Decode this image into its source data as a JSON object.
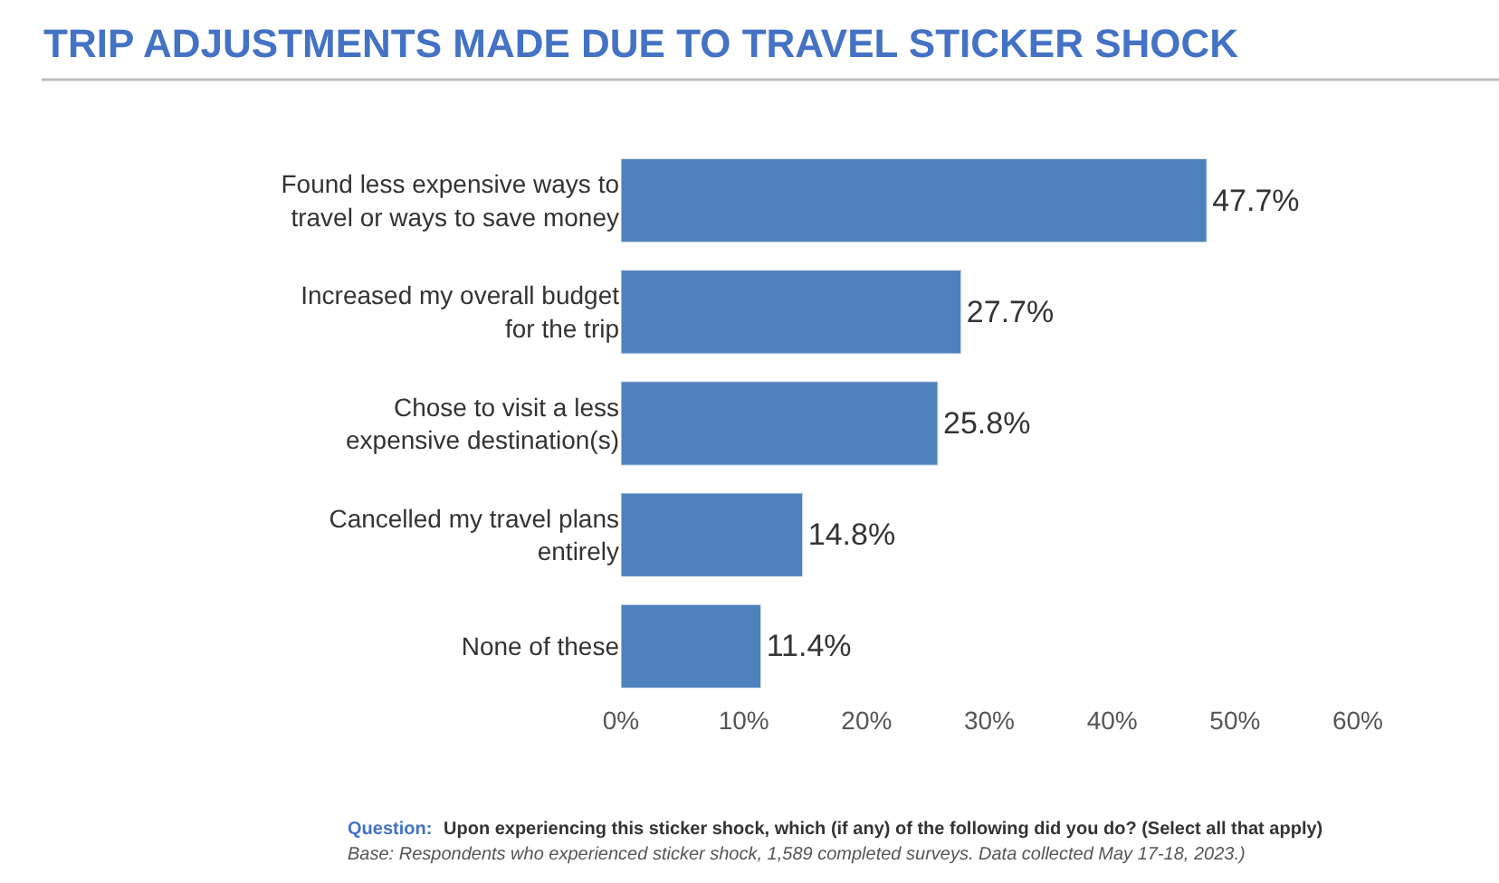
{
  "chart_data": {
    "type": "bar",
    "orientation": "horizontal",
    "title": "TRIP ADJUSTMENTS MADE DUE TO TRAVEL STICKER SHOCK",
    "categories": [
      "Found less expensive ways to travel or ways to save money",
      "Increased my overall budget for the trip",
      "Chose to visit a less expensive destination(s)",
      "Cancelled my travel plans entirely",
      "None of these"
    ],
    "values": [
      47.7,
      27.7,
      25.8,
      14.8,
      11.4
    ],
    "value_labels": [
      "47.7%",
      "27.7%",
      "25.8%",
      "14.8%",
      "11.4%"
    ],
    "color": "#4f81bd",
    "xlim": [
      0,
      60
    ],
    "xticks": [
      {
        "value": 0,
        "label": "0%"
      },
      {
        "value": 10,
        "label": "10%"
      },
      {
        "value": 20,
        "label": "20%"
      },
      {
        "value": 30,
        "label": "30%"
      },
      {
        "value": 40,
        "label": "40%"
      },
      {
        "value": 50,
        "label": "50%"
      },
      {
        "value": 60,
        "label": "60%"
      }
    ],
    "legend": false,
    "annotations": [
      "Question:",
      "Upon experiencing this sticker shock, which (if any) of the following did you do? (Select all that apply)",
      "Base: Respondents who experienced sticker shock, 1,589 completed surveys. Data collected May 17-18, 2023.)"
    ]
  }
}
